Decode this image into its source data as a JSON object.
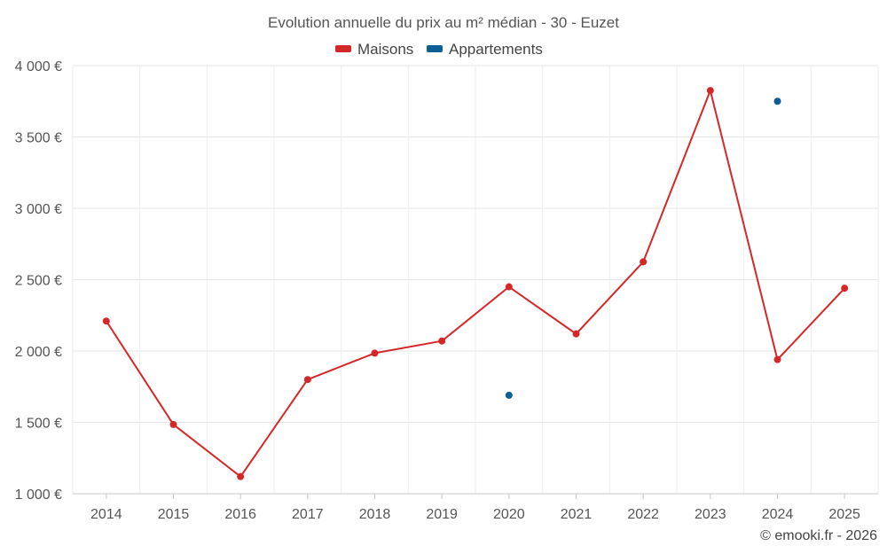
{
  "chart_data": {
    "type": "line",
    "title": "Evolution annuelle du prix au m² médian - 30 - Euzet",
    "categories": [
      "2014",
      "2015",
      "2016",
      "2017",
      "2018",
      "2019",
      "2020",
      "2021",
      "2022",
      "2023",
      "2024",
      "2025"
    ],
    "series": [
      {
        "name": "Maisons",
        "color": "#d62728",
        "values": [
          2210,
          1485,
          1120,
          1800,
          1985,
          2070,
          2450,
          2120,
          2625,
          3825,
          1940,
          2440
        ]
      },
      {
        "name": "Appartements",
        "color": "#0b5e96",
        "values": [
          null,
          null,
          null,
          null,
          null,
          null,
          1690,
          null,
          null,
          null,
          3750,
          null
        ]
      }
    ],
    "y_ticks": [
      "1 000 €",
      "1 500 €",
      "2 000 €",
      "2 500 €",
      "3 000 €",
      "3 500 €",
      "4 000 €"
    ],
    "y_tick_values": [
      1000,
      1500,
      2000,
      2500,
      3000,
      3500,
      4000
    ],
    "ylim": [
      1000,
      4000
    ],
    "xlabel": "",
    "ylabel": "",
    "grid": true,
    "legend_position": "top-center"
  },
  "credit": "© emooki.fr - 2026"
}
